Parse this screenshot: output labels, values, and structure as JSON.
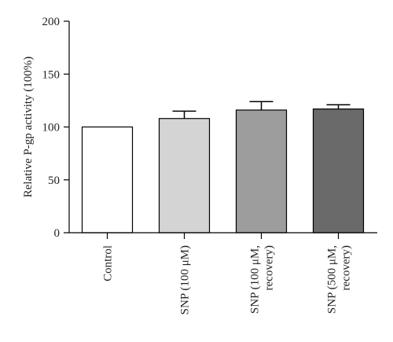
{
  "chart_data": {
    "type": "bar",
    "ylabel": "Relative P-gp activity (100%)",
    "xlabel": "",
    "ylim": [
      0,
      200
    ],
    "yticks": [
      0,
      50,
      100,
      150,
      200
    ],
    "grid": false,
    "categories": [
      [
        "Control"
      ],
      [
        "SNP (100 μM)"
      ],
      [
        "SNP (100 μM,",
        "recovery)"
      ],
      [
        "SNP (500 μM,",
        "recovery)"
      ]
    ],
    "values": [
      100,
      108,
      116,
      117
    ],
    "errors": [
      0,
      7,
      8,
      4
    ],
    "colors": [
      "#ffffff",
      "#d4d4d4",
      "#9d9d9d",
      "#6a6a6a"
    ]
  }
}
